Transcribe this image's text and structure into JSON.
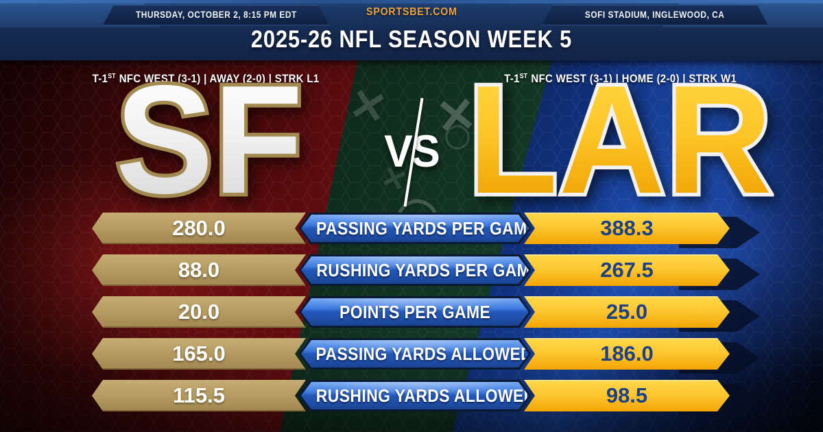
{
  "header": {
    "site": "SPORTSBET.COM",
    "datetime": "THURSDAY, OCTOBER 2, 8:15 PM EDT",
    "venue": "SOFI STADIUM, INGLEWOOD, CA",
    "title": "2025-26 NFL SEASON WEEK 5"
  },
  "matchup": {
    "vs_label": "VS",
    "away": {
      "abbr": "SF",
      "rank_prefix": "T-1",
      "rank_suffix": "ST",
      "record_line": "NFC WEST (3-1)  |  AWAY (2-0)  |  STRK L1"
    },
    "home": {
      "abbr": "LAR",
      "rank_prefix": "T-1",
      "rank_suffix": "ST",
      "record_line": "NFC WEST (3-1)  |  HOME (2-0)  |  STRK W1"
    }
  },
  "stats": {
    "rows": [
      {
        "away": "280.0",
        "label": "PASSING YARDS PER GAME",
        "home": "388.3"
      },
      {
        "away": "88.0",
        "label": "RUSHING YARDS PER GAME",
        "home": "267.5"
      },
      {
        "away": "20.0",
        "label": "POINTS PER GAME",
        "home": "25.0"
      },
      {
        "away": "165.0",
        "label": "PASSING YARDS ALLOWED",
        "home": "186.0"
      },
      {
        "away": "115.5",
        "label": "RUSHING YARDS ALLOWED",
        "home": "98.5"
      }
    ]
  },
  "colors": {
    "sf_gold": "#b3995d",
    "lar_gold": "#f5a800",
    "lar_navy": "#1c4186",
    "header_navy": "#16294e",
    "accent_gold_text": "#f0a43a",
    "bar_blue": "#2257b8",
    "bg_red": "#7a1013",
    "bg_green": "#143826",
    "bg_blue": "#10307c"
  }
}
